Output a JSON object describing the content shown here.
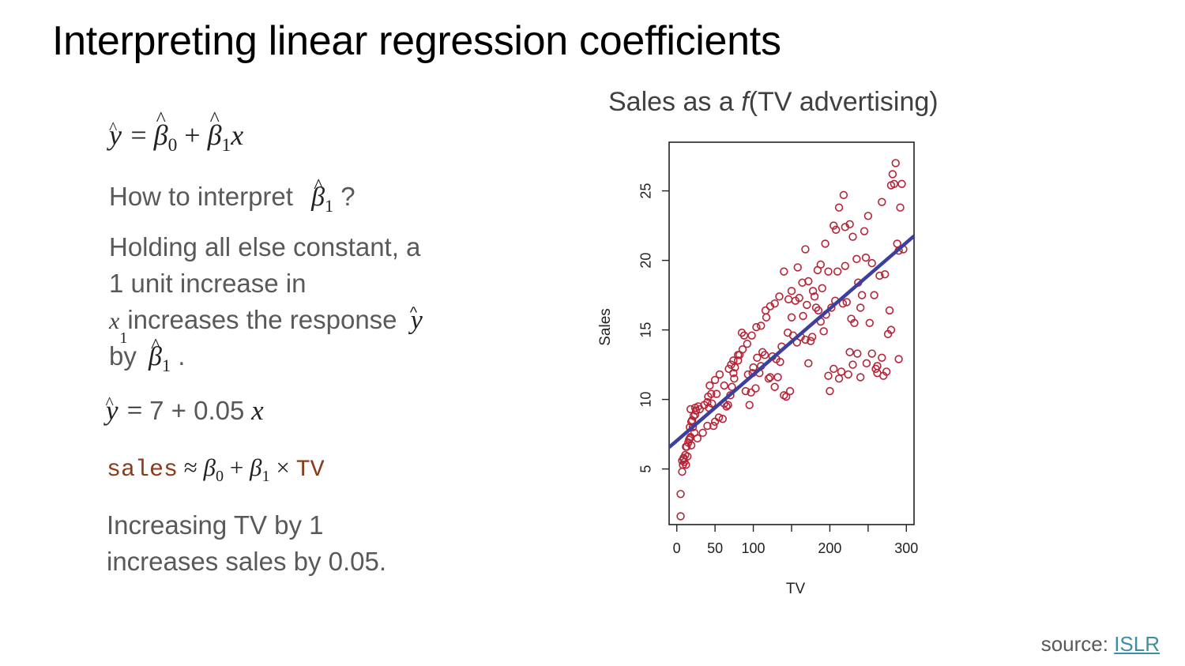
{
  "slide": {
    "title": "Interpreting linear regression coefficients",
    "question_prefix": "How to interpret",
    "question_suffix": "?",
    "para_line1": "Holding all else constant, a",
    "para_line2": "1 unit increase in",
    "para_line3": "increases the response",
    "para_line4_prefix": "by",
    "para_line4_suffix": ".",
    "fitted_intercept_slope": "7 + 0.05",
    "code_sales": "sales",
    "code_tv": "TV",
    "conclusion_line1": "Increasing TV by 1",
    "conclusion_line2": "increases sales by 0.05.",
    "source_label": "source:",
    "source_link": "ISLR"
  },
  "chart_title": {
    "prefix": "Sales as a ",
    "f": "f",
    "suffix": "(TV advertising)"
  },
  "chart_data": {
    "type": "scatter",
    "xlabel": "TV",
    "ylabel": "Sales",
    "xlim": [
      -10,
      310
    ],
    "ylim": [
      1,
      28.5
    ],
    "xticks": [
      0,
      50,
      100,
      150,
      200,
      250,
      300
    ],
    "xtick_labels": [
      "0",
      "50",
      "100",
      "",
      "200",
      "",
      "300"
    ],
    "yticks": [
      5,
      10,
      15,
      20,
      25
    ],
    "point_color": "#b52537",
    "line_color": "#3b3f9e",
    "regression_line": {
      "intercept": 7.03,
      "slope": 0.0475
    },
    "points": [
      [
        5,
        1.6
      ],
      [
        5,
        3.2
      ],
      [
        7,
        4.8
      ],
      [
        8,
        5.3
      ],
      [
        10,
        5.5
      ],
      [
        12,
        5.3
      ],
      [
        14,
        5.9
      ],
      [
        7,
        5.6
      ],
      [
        9,
        5.7
      ],
      [
        17,
        7.2
      ],
      [
        13,
        6.6
      ],
      [
        16,
        7.1
      ],
      [
        18,
        7.3
      ],
      [
        20,
        8.5
      ],
      [
        22,
        8.8
      ],
      [
        25,
        9.2
      ],
      [
        17,
        8.0
      ],
      [
        18,
        9.3
      ],
      [
        19,
        8.4
      ],
      [
        24,
        9.4
      ],
      [
        28,
        9.5
      ],
      [
        23,
        7.6
      ],
      [
        19,
        6.7
      ],
      [
        11,
        6.0
      ],
      [
        34,
        7.6
      ],
      [
        40,
        8.1
      ],
      [
        42,
        9.4
      ],
      [
        45,
        10.4
      ],
      [
        50,
        11.4
      ],
      [
        41,
        10.2
      ],
      [
        43,
        11.0
      ],
      [
        48,
        8.1
      ],
      [
        50,
        8.4
      ],
      [
        55,
        8.7
      ],
      [
        60,
        8.6
      ],
      [
        62,
        9.7
      ],
      [
        65,
        9.5
      ],
      [
        67,
        9.6
      ],
      [
        70,
        10.3
      ],
      [
        72,
        10.9
      ],
      [
        75,
        11.5
      ],
      [
        76,
        12.3
      ],
      [
        71,
        12.5
      ],
      [
        74,
        11.9
      ],
      [
        80,
        12.8
      ],
      [
        82,
        13.2
      ],
      [
        85,
        14.8
      ],
      [
        88,
        14.6
      ],
      [
        90,
        10.6
      ],
      [
        93,
        11.8
      ],
      [
        95,
        9.6
      ],
      [
        97,
        10.5
      ],
      [
        99,
        11.9
      ],
      [
        100,
        12.3
      ],
      [
        103,
        10.8
      ],
      [
        105,
        13.0
      ],
      [
        108,
        11.9
      ],
      [
        110,
        12.4
      ],
      [
        112,
        13.4
      ],
      [
        115,
        13.2
      ],
      [
        117,
        15.9
      ],
      [
        120,
        11.5
      ],
      [
        122,
        11.6
      ],
      [
        125,
        13.1
      ],
      [
        128,
        10.9
      ],
      [
        130,
        12.9
      ],
      [
        132,
        11.6
      ],
      [
        135,
        12.7
      ],
      [
        137,
        13.8
      ],
      [
        140,
        10.3
      ],
      [
        143,
        10.2
      ],
      [
        145,
        14.8
      ],
      [
        148,
        10.6
      ],
      [
        150,
        15.9
      ],
      [
        152,
        14.6
      ],
      [
        155,
        17.1
      ],
      [
        157,
        14.1
      ],
      [
        160,
        17.3
      ],
      [
        162,
        14.5
      ],
      [
        165,
        16.0
      ],
      [
        168,
        14.3
      ],
      [
        170,
        16.8
      ],
      [
        172,
        12.6
      ],
      [
        175,
        14.2
      ],
      [
        177,
        14.5
      ],
      [
        180,
        17.4
      ],
      [
        182,
        16.6
      ],
      [
        185,
        16.4
      ],
      [
        188,
        15.6
      ],
      [
        190,
        18.0
      ],
      [
        192,
        14.9
      ],
      [
        195,
        16.1
      ],
      [
        198,
        11.7
      ],
      [
        200,
        10.6
      ],
      [
        202,
        16.6
      ],
      [
        205,
        12.2
      ],
      [
        207,
        17.1
      ],
      [
        210,
        19.2
      ],
      [
        212,
        11.5
      ],
      [
        215,
        12.0
      ],
      [
        217,
        16.9
      ],
      [
        220,
        19.6
      ],
      [
        222,
        17.0
      ],
      [
        224,
        11.8
      ],
      [
        226,
        13.4
      ],
      [
        228,
        15.8
      ],
      [
        230,
        12.5
      ],
      [
        232,
        15.5
      ],
      [
        235,
        20.1
      ],
      [
        237,
        18.4
      ],
      [
        240,
        16.6
      ],
      [
        242,
        17.5
      ],
      [
        245,
        22.1
      ],
      [
        247,
        20.2
      ],
      [
        250,
        23.2
      ],
      [
        252,
        15.5
      ],
      [
        255,
        19.8
      ],
      [
        258,
        17.5
      ],
      [
        260,
        12.2
      ],
      [
        262,
        11.9
      ],
      [
        265,
        18.9
      ],
      [
        268,
        24.2
      ],
      [
        270,
        11.7
      ],
      [
        272,
        19.0
      ],
      [
        274,
        12.0
      ],
      [
        276,
        14.7
      ],
      [
        278,
        16.4
      ],
      [
        280,
        25.4
      ],
      [
        282,
        26.2
      ],
      [
        284,
        25.5
      ],
      [
        286,
        27.0
      ],
      [
        288,
        21.2
      ],
      [
        290,
        20.7
      ],
      [
        292,
        23.8
      ],
      [
        294,
        25.5
      ],
      [
        296,
        20.8
      ],
      [
        290,
        12.9
      ],
      [
        280,
        15.0
      ],
      [
        268,
        13.0
      ],
      [
        262,
        12.4
      ],
      [
        255,
        13.3
      ],
      [
        248,
        12.6
      ],
      [
        240,
        11.6
      ],
      [
        236,
        13.3
      ],
      [
        230,
        21.7
      ],
      [
        226,
        22.6
      ],
      [
        220,
        22.4
      ],
      [
        218,
        24.7
      ],
      [
        212,
        23.8
      ],
      [
        208,
        22.2
      ],
      [
        205,
        22.5
      ],
      [
        198,
        19.2
      ],
      [
        194,
        21.2
      ],
      [
        188,
        19.7
      ],
      [
        184,
        19.3
      ],
      [
        178,
        17.8
      ],
      [
        172,
        18.5
      ],
      [
        168,
        20.8
      ],
      [
        164,
        18.4
      ],
      [
        158,
        19.5
      ],
      [
        150,
        17.8
      ],
      [
        146,
        17.2
      ],
      [
        140,
        19.2
      ],
      [
        134,
        17.4
      ],
      [
        128,
        16.9
      ],
      [
        122,
        16.7
      ],
      [
        116,
        16.4
      ],
      [
        110,
        15.3
      ],
      [
        104,
        15.2
      ],
      [
        98,
        14.6
      ],
      [
        92,
        14.0
      ],
      [
        86,
        13.6
      ],
      [
        80,
        13.2
      ],
      [
        74,
        12.8
      ],
      [
        68,
        12.2
      ],
      [
        62,
        11.0
      ],
      [
        56,
        11.8
      ],
      [
        52,
        10.4
      ],
      [
        46,
        9.7
      ],
      [
        40,
        9.8
      ],
      [
        36,
        9.6
      ],
      [
        30,
        9.3
      ],
      [
        27,
        7.2
      ],
      [
        24,
        8.9
      ],
      [
        21,
        8.0
      ],
      [
        15,
        6.9
      ],
      [
        12,
        6.6
      ],
      [
        9,
        5.8
      ]
    ]
  }
}
